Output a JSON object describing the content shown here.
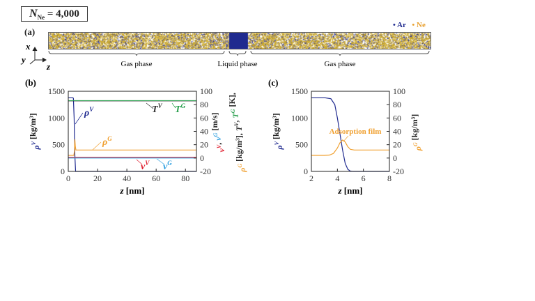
{
  "header": {
    "n_symbol": "N",
    "n_sub": "Ne",
    "n_value": "= 4,000"
  },
  "panel_a": {
    "label": "(a)",
    "legend": [
      {
        "label": "Ar",
        "color": "#1f2a8f"
      },
      {
        "label": "Ne",
        "color": "#e8a030"
      }
    ],
    "axes": {
      "x": "x",
      "y": "y",
      "z": "z"
    },
    "phases": [
      "Gas phase",
      "Liquid phase",
      "Gas phase"
    ]
  },
  "colors": {
    "rhoV": "#1f2a8f",
    "rhoG": "#f0a030",
    "TV": "#333333",
    "TG": "#2ca050",
    "vV": "#e02030",
    "vG": "#30a0e0"
  },
  "chart_data": [
    {
      "panel": "(b)",
      "type": "line",
      "xlabel": "z [nm]",
      "xlim": [
        0,
        87.5
      ],
      "xticks": [
        0,
        20,
        40,
        60,
        80
      ],
      "ylabel_left": "ρV [kg/m3]",
      "ylim_left": [
        0,
        1500
      ],
      "yticks_left": [
        0,
        500,
        1000,
        1500
      ],
      "ylabel_right_1": "vV, vG [m/s]",
      "ylabel_right_2": "ρG [kg/m3], TV, TG [K],",
      "ylim_right": [
        -20,
        100
      ],
      "yticks_right": [
        -20,
        0,
        20,
        40,
        60,
        80,
        100
      ],
      "series": [
        {
          "name": "ρV",
          "axis": "left",
          "color": "#1f2a8f",
          "x": [
            0,
            3,
            3.5,
            4,
            4.5,
            5,
            87.5
          ],
          "y": [
            1380,
            1380,
            1370,
            1000,
            300,
            0,
            0
          ]
        },
        {
          "name": "ρG",
          "axis": "right",
          "color": "#f0a030",
          "x": [
            0,
            3.8,
            4.2,
            4.5,
            4.8,
            5.2,
            87.5
          ],
          "y": [
            4,
            4,
            10,
            28,
            18,
            12,
            12
          ]
        },
        {
          "name": "TV",
          "axis": "right",
          "color": "#333333",
          "x": [
            0,
            87.5
          ],
          "y": [
            85.6,
            85.6
          ]
        },
        {
          "name": "TG",
          "axis": "right",
          "color": "#2ca050",
          "x": [
            0,
            87.5
          ],
          "y": [
            86,
            86
          ]
        },
        {
          "name": "vV",
          "axis": "right",
          "color": "#e02030",
          "x": [
            0,
            87.5
          ],
          "y": [
            1,
            1
          ]
        },
        {
          "name": "vG",
          "axis": "right",
          "color": "#30a0e0",
          "x": [
            0,
            87.5
          ],
          "y": [
            0,
            0
          ]
        }
      ]
    },
    {
      "panel": "(c)",
      "type": "line",
      "xlabel": "z [nm]",
      "xlim": [
        2,
        8
      ],
      "xticks": [
        2,
        4,
        6,
        8
      ],
      "ylabel_left": "ρV [kg/m3]",
      "ylim_left": [
        0,
        1500
      ],
      "yticks_left": [
        0,
        500,
        1000,
        1500
      ],
      "ylabel_right": "ρG [kg/m3]",
      "ylim_right": [
        -20,
        100
      ],
      "yticks_right": [
        -20,
        0,
        20,
        40,
        60,
        80,
        100
      ],
      "annotation": "Adsorption film",
      "series": [
        {
          "name": "ρV",
          "axis": "left",
          "color": "#1f2a8f",
          "x": [
            2,
            3,
            3.5,
            3.8,
            4,
            4.2,
            4.4,
            4.6,
            4.8,
            5,
            5.2,
            8
          ],
          "y": [
            1380,
            1380,
            1360,
            1250,
            1000,
            700,
            400,
            150,
            40,
            5,
            0,
            0
          ]
        },
        {
          "name": "ρG",
          "axis": "right",
          "color": "#f0a030",
          "x": [
            2,
            3,
            3.4,
            3.7,
            4,
            4.2,
            4.4,
            4.6,
            4.8,
            5,
            5.3,
            8
          ],
          "y": [
            4,
            4,
            4.5,
            7,
            15,
            23,
            27,
            24,
            17,
            13,
            12,
            12
          ]
        }
      ]
    }
  ]
}
